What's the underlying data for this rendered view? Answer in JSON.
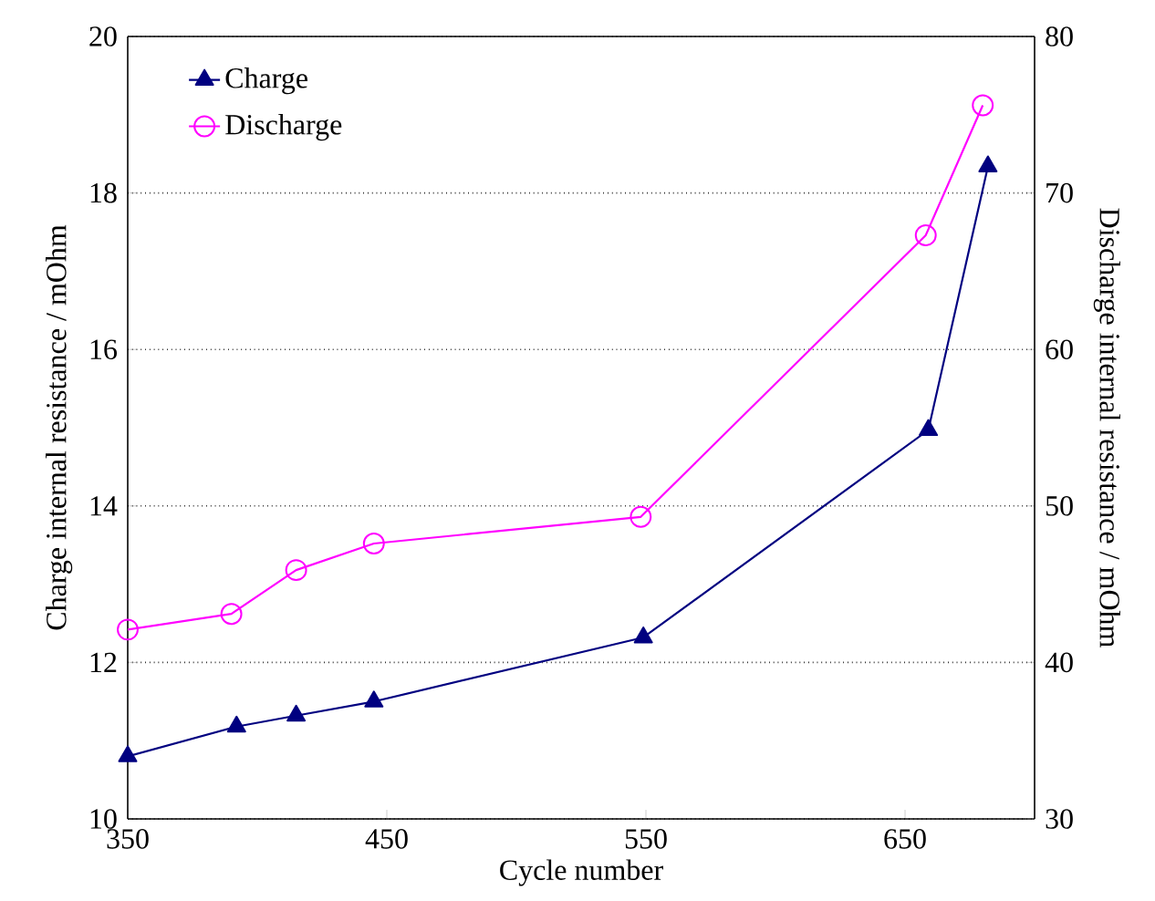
{
  "chart_data": {
    "type": "line",
    "xlabel": "Cycle number",
    "ylabel": "Charge internal resistance / mOhm",
    "y2label": "Discharge internal resistance / mOhm",
    "xlim": [
      350,
      700
    ],
    "xticks": [
      350,
      450,
      550,
      650
    ],
    "ylim": [
      10,
      20
    ],
    "yticks": [
      10,
      12,
      14,
      16,
      18,
      20
    ],
    "y2lim": [
      30,
      80
    ],
    "y2ticks": [
      30,
      40,
      50,
      60,
      70,
      80
    ],
    "grid": "y",
    "legend": "top left",
    "series": [
      {
        "name": "Charge",
        "color": "#000080",
        "marker": "triangle",
        "x": [
          350,
          392,
          415,
          445,
          549,
          659,
          682
        ],
        "values": [
          10.8,
          11.18,
          11.32,
          11.5,
          12.32,
          14.97,
          18.34
        ]
      },
      {
        "name": "Discharge",
        "color": "#ff00ff",
        "marker": "circle",
        "axis": "y2",
        "x": [
          350,
          390,
          415,
          445,
          548,
          658,
          680
        ],
        "values": [
          42.1,
          43.1,
          45.9,
          47.6,
          49.3,
          67.3,
          75.6
        ]
      }
    ]
  }
}
